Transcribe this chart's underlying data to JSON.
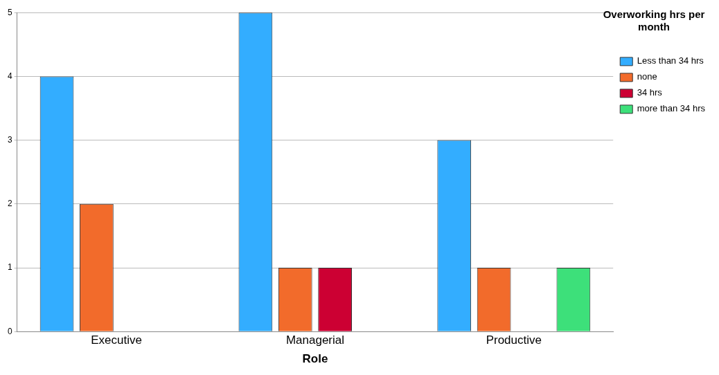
{
  "chart_data": {
    "type": "bar",
    "xlabel": "Role",
    "legend_title": "Overworking hrs per month",
    "categories": [
      "Executive",
      "Managerial",
      "Productive"
    ],
    "series": [
      {
        "name": "Less than 34 hrs",
        "color": "#33adff",
        "values": [
          4,
          5,
          3
        ]
      },
      {
        "name": "none",
        "color": "#f26b2b",
        "values": [
          2,
          1,
          1
        ]
      },
      {
        "name": "34 hrs",
        "color": "#cc0033",
        "values": [
          null,
          1,
          null
        ]
      },
      {
        "name": "more than 34 hrs",
        "color": "#3de07a",
        "values": [
          null,
          null,
          1
        ]
      }
    ],
    "ylim": [
      0,
      5
    ],
    "yticks": [
      0,
      1,
      2,
      3,
      4,
      5
    ],
    "grid": "y",
    "legend": "top right"
  }
}
